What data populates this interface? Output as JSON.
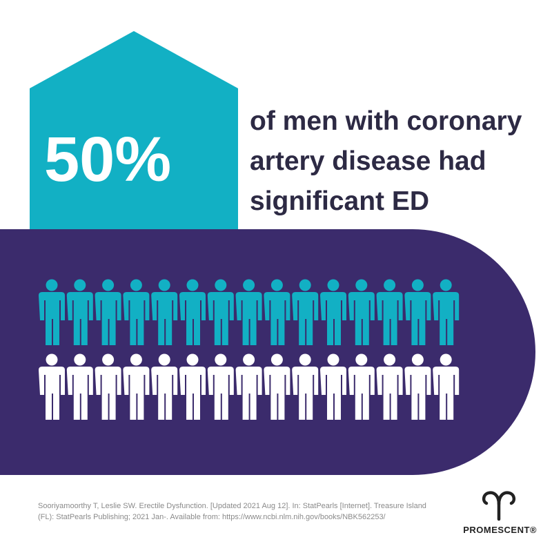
{
  "headline": {
    "stat": "50%",
    "lines": [
      "of men with coronary",
      "artery disease had",
      "significant ED"
    ]
  },
  "citation": {
    "lines": [
      "Sooriyamoorthy T, Leslie SW. Erectile Dysfunction. [Updated 2021 Aug 12]. In: StatPearls [Internet]. Treasure Island",
      "(FL): StatPearls Publishing; 2021 Jan-. Available from: https://www.ncbi.nlm.nih.gov/books/NBK562253/"
    ]
  },
  "brand": {
    "name": "PROMESCENT®"
  }
}
